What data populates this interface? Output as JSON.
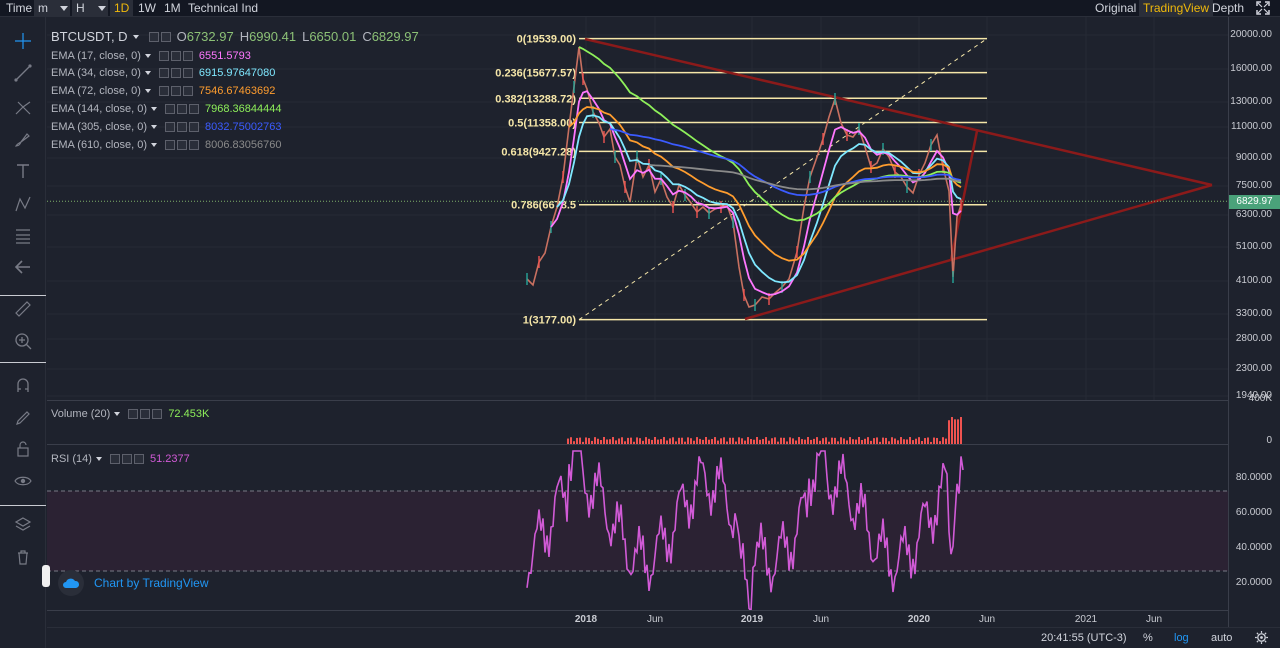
{
  "toolbar": {
    "time": "Time",
    "minutes": "m",
    "hours": "H",
    "d1": "1D",
    "w1": "1W",
    "m1": "1M",
    "indicators": "Technical Ind",
    "original": "Original",
    "tradingview": "TradingView",
    "depth": "Depth"
  },
  "symbol": {
    "name": "BTCUSDT, D",
    "open_label": "O",
    "open": "6732.97",
    "high_label": "H",
    "high": "6990.41",
    "low_label": "L",
    "low": "6650.01",
    "close_label": "C",
    "close": "6829.97"
  },
  "emas": [
    {
      "name": "EMA (17, close, 0)",
      "value": "6551.5793",
      "color": "#ff77ff"
    },
    {
      "name": "EMA (34, close, 0)",
      "value": "6915.97647080",
      "color": "#7fe8ff"
    },
    {
      "name": "EMA (72, close, 0)",
      "value": "7546.67463692",
      "color": "#ff9d2e"
    },
    {
      "name": "EMA (144, close, 0)",
      "value": "7968.36844444",
      "color": "#8ef05a"
    },
    {
      "name": "EMA (305, close, 0)",
      "value": "8032.75002763",
      "color": "#3b5bff"
    },
    {
      "name": "EMA (610, close, 0)",
      "value": "8006.83056760",
      "color": "#8a8a8a"
    }
  ],
  "fib_levels": [
    {
      "label": "0(19539.00)",
      "price": 19539
    },
    {
      "label": "0.236(15677.57)",
      "price": 15677.57
    },
    {
      "label": "0.382(13288.72)",
      "price": 13288.72
    },
    {
      "label": "0.5(11358.00)",
      "price": 11358
    },
    {
      "label": "0.618(9427.28)",
      "price": 9427.28
    },
    {
      "label": "0.786(6678.5",
      "price": 6678.5
    },
    {
      "label": "1(3177.00)",
      "price": 3177
    }
  ],
  "volume": {
    "name": "Volume (20)",
    "value": "72.453K"
  },
  "rsi": {
    "name": "RSI (14)",
    "value": "51.2377"
  },
  "price_axis": [
    "20000.00",
    "16000.00",
    "13000.00",
    "11000.00",
    "9000.00",
    "7500.00",
    "6300.00",
    "5100.00",
    "4100.00",
    "3300.00",
    "2800.00",
    "2300.00",
    "1940.00"
  ],
  "current_price": "6829.97",
  "volume_axis": [
    "400K",
    "0"
  ],
  "rsi_axis": [
    "80.0000",
    "60.0000",
    "40.0000",
    "20.0000"
  ],
  "time_axis": [
    {
      "label": "2018",
      "bold": true
    },
    {
      "label": "Jun",
      "bold": false
    },
    {
      "label": "2019",
      "bold": true
    },
    {
      "label": "Jun",
      "bold": false
    },
    {
      "label": "2020",
      "bold": true
    },
    {
      "label": "Jun",
      "bold": false
    },
    {
      "label": "2021",
      "bold": false
    },
    {
      "label": "Jun",
      "bold": false
    }
  ],
  "bottom": {
    "clock": "20:41:55 (UTC-3)",
    "percent": "%",
    "log": "log",
    "auto": "auto"
  },
  "watermark": "Chart by TradingView"
}
